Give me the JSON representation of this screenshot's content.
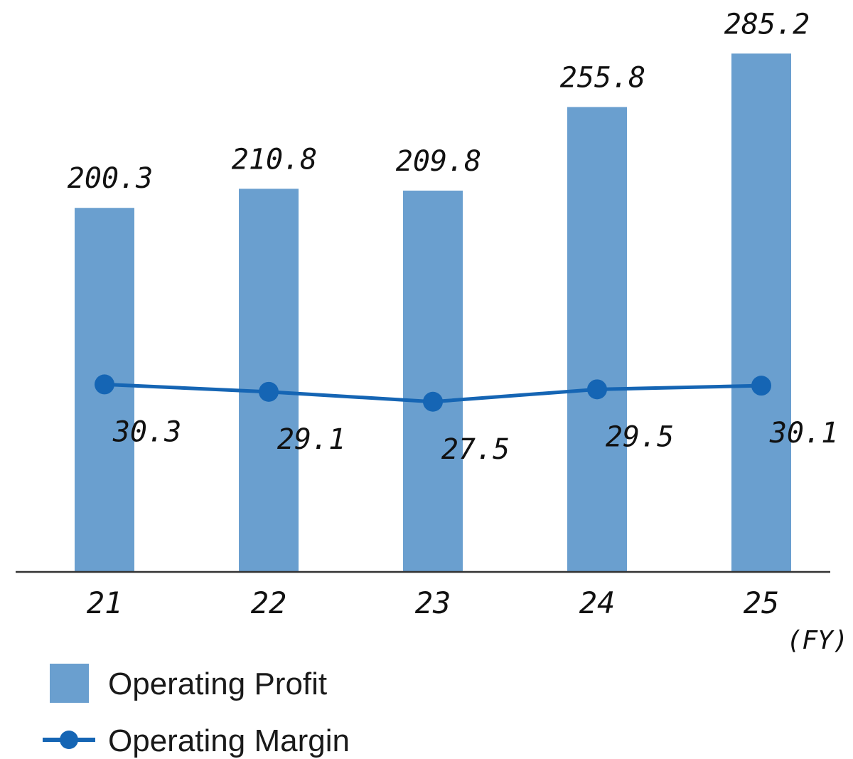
{
  "colors": {
    "bar": "#6a9fcf",
    "line": "#1565b4",
    "axis": "#333333",
    "text": "#111111"
  },
  "chart_data": {
    "type": "bar",
    "categories": [
      "21",
      "22",
      "23",
      "24",
      "25"
    ],
    "x_unit": "(FY)",
    "series": [
      {
        "name": "Operating Profit",
        "type": "bar",
        "values": [
          200.3,
          210.8,
          209.8,
          255.8,
          285.2
        ]
      },
      {
        "name": "Operating Margin",
        "type": "line",
        "values": [
          30.3,
          29.1,
          27.5,
          29.5,
          30.1
        ]
      }
    ],
    "ylim_bar": [
      0,
      300
    ],
    "ylim_line": [
      0,
      45
    ],
    "grid": false,
    "legend_position": "bottom-left"
  }
}
